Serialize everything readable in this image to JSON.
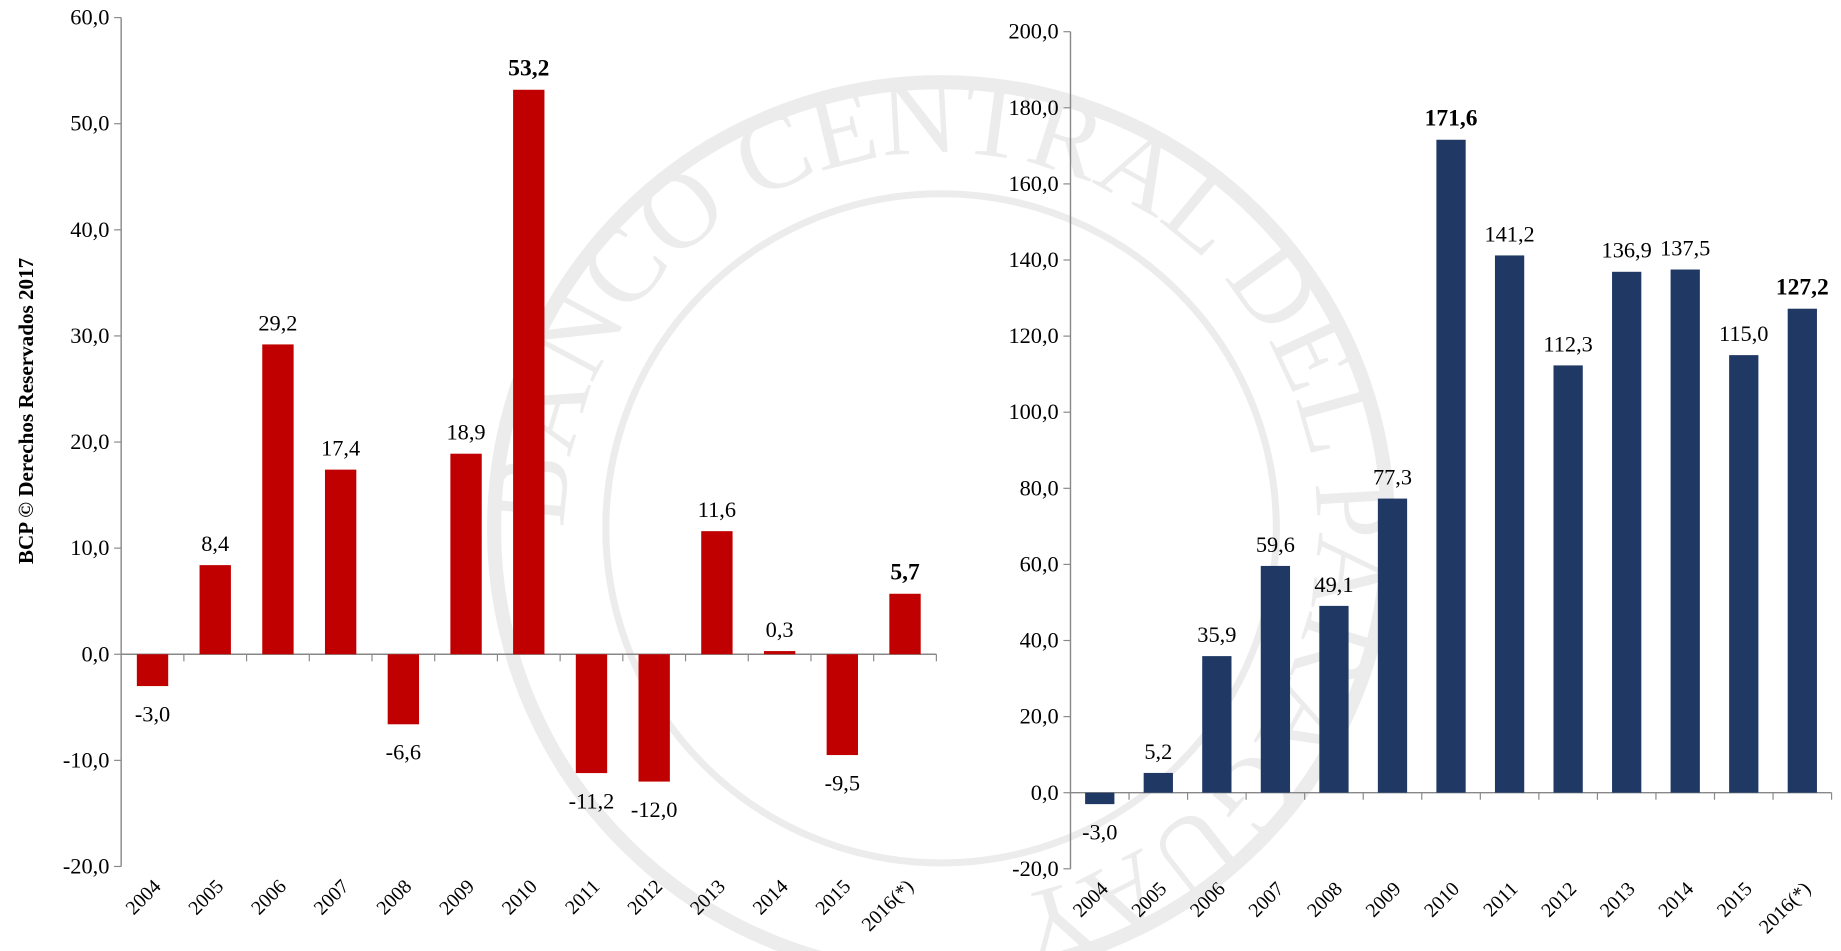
{
  "watermark": "BANCO CENTRAL DEL PARAGUAY",
  "chart_data": [
    {
      "type": "bar",
      "ylabel": "BCP © Derechos Reservados 2017",
      "categories": [
        "2004",
        "2005",
        "2006",
        "2007",
        "2008",
        "2009",
        "2010",
        "2011",
        "2012",
        "2013",
        "2014",
        "2015",
        "2016(*)"
      ],
      "values": [
        -3,
        8.4,
        29.2,
        17.4,
        -6.6,
        18.9,
        53.2,
        -11.2,
        -12,
        11.6,
        0.3,
        -9.5,
        5.7
      ],
      "value_labels": [
        "-3,0",
        "8,4",
        "29,2",
        "17,4",
        "-6,6",
        "18,9",
        "53,2",
        "-11,2",
        "-12,0",
        "11,6",
        "0,3",
        "-9,5",
        "5,7"
      ],
      "bold_labels": [
        6,
        12
      ],
      "color": "#c00000",
      "ylim": [
        -20,
        60
      ],
      "yticks": [
        {
          "value": -20,
          "label": "-20,0"
        },
        {
          "value": -10,
          "label": "-10,0"
        },
        {
          "value": 0,
          "label": "0,0"
        },
        {
          "value": 10,
          "label": "10,0"
        },
        {
          "value": 20,
          "label": "20,0"
        },
        {
          "value": 30,
          "label": "30,0"
        },
        {
          "value": 40,
          "label": "40,0"
        },
        {
          "value": 50,
          "label": "50,0"
        },
        {
          "value": 60,
          "label": "60,0"
        }
      ]
    },
    {
      "type": "bar",
      "categories": [
        "2004",
        "2005",
        "2006",
        "2007",
        "2008",
        "2009",
        "2010",
        "2011",
        "2012",
        "2013",
        "2014",
        "2015",
        "2016(*)"
      ],
      "values": [
        -3,
        5.2,
        35.9,
        59.6,
        49.1,
        77.3,
        171.6,
        141.2,
        112.3,
        136.9,
        137.5,
        115,
        127.2
      ],
      "value_labels": [
        "-3,0",
        "5,2",
        "35,9",
        "59,6",
        "49,1",
        "77,3",
        "171,6",
        "141,2",
        "112,3",
        "136,9",
        "137,5",
        "115,0",
        "127,2"
      ],
      "bold_labels": [
        6,
        12
      ],
      "color": "#1f3864",
      "ylim": [
        -20,
        200
      ],
      "yticks": [
        {
          "value": -20,
          "label": "-20,0"
        },
        {
          "value": 0,
          "label": "0,0"
        },
        {
          "value": 20,
          "label": "20,0"
        },
        {
          "value": 40,
          "label": "40,0"
        },
        {
          "value": 60,
          "label": "60,0"
        },
        {
          "value": 80,
          "label": "80,0"
        },
        {
          "value": 100,
          "label": "100,0"
        },
        {
          "value": 120,
          "label": "120,0"
        },
        {
          "value": 140,
          "label": "140,0"
        },
        {
          "value": 160,
          "label": "160,0"
        },
        {
          "value": 180,
          "label": "180,0"
        },
        {
          "value": 200,
          "label": "200,0"
        }
      ]
    }
  ]
}
